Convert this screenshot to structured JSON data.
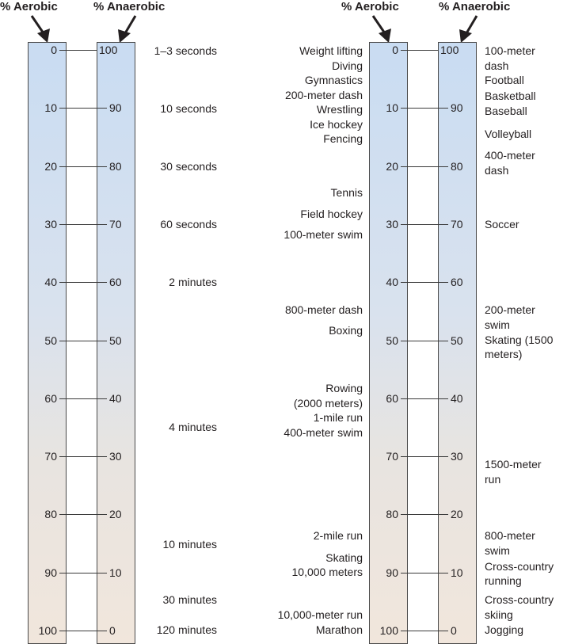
{
  "headers": {
    "aerobic": "% Aerobic",
    "anaerobic": "% Anaerobic"
  },
  "scale": {
    "aerobic": [
      "0",
      "10",
      "20",
      "30",
      "40",
      "50",
      "60",
      "70",
      "80",
      "90",
      "100"
    ],
    "anaerobic": [
      "100",
      "90",
      "80",
      "70",
      "60",
      "50",
      "40",
      "30",
      "20",
      "10",
      "0"
    ]
  },
  "durations": [
    "1–3 seconds",
    "10 seconds",
    "30 seconds",
    "60 seconds",
    "2 minutes",
    "4 minutes",
    "10 minutes",
    "30 minutes",
    "120 minutes"
  ],
  "sports_left": [
    "Weight lifting",
    "Diving",
    "Gymnastics",
    "200-meter dash",
    "Wrestling",
    "Ice hockey",
    "Fencing",
    "Tennis",
    "Field hockey",
    "100-meter swim",
    "800-meter dash",
    "Boxing",
    "Rowing",
    "(2000 meters)",
    "1-mile run",
    "400-meter swim",
    "2-mile run",
    "Skating",
    "10,000 meters",
    "10,000-meter run",
    "Marathon"
  ],
  "sports_right": [
    "100-meter",
    "dash",
    "Football",
    "Basketball",
    "Baseball",
    "Volleyball",
    "400-meter",
    "dash",
    "Soccer",
    "200-meter",
    "swim",
    "Skating (1500",
    "meters)",
    "1500-meter",
    "run",
    "800-meter",
    "swim",
    "Cross-country",
    "running",
    "Cross-country",
    "skiing",
    "Jogging"
  ],
  "colors": {
    "bar_top": "#c9dcf2",
    "bar_bottom": "#f1e6dc",
    "border": "#4a4a4a"
  }
}
